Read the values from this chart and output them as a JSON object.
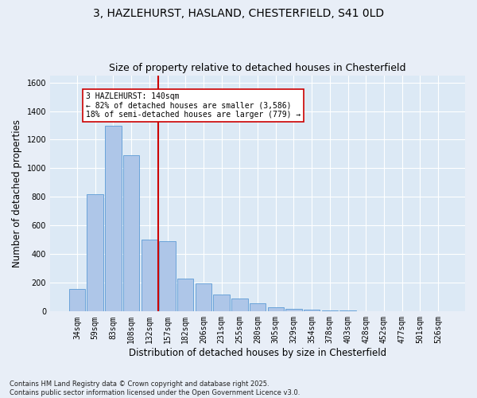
{
  "title1": "3, HAZLEHURST, HASLAND, CHESTERFIELD, S41 0LD",
  "title2": "Size of property relative to detached houses in Chesterfield",
  "xlabel": "Distribution of detached houses by size in Chesterfield",
  "ylabel": "Number of detached properties",
  "categories": [
    "34sqm",
    "59sqm",
    "83sqm",
    "108sqm",
    "132sqm",
    "157sqm",
    "182sqm",
    "206sqm",
    "231sqm",
    "255sqm",
    "280sqm",
    "305sqm",
    "329sqm",
    "354sqm",
    "378sqm",
    "403sqm",
    "428sqm",
    "452sqm",
    "477sqm",
    "501sqm",
    "526sqm"
  ],
  "values": [
    155,
    820,
    1300,
    1090,
    500,
    490,
    230,
    195,
    120,
    90,
    55,
    30,
    18,
    12,
    8,
    5,
    3,
    2,
    2,
    1,
    1
  ],
  "bar_color": "#aec6e8",
  "bar_edge_color": "#5b9bd5",
  "vline_color": "#cc0000",
  "annotation_text": "3 HAZLEHURST: 140sqm\n← 82% of detached houses are smaller (3,586)\n18% of semi-detached houses are larger (779) →",
  "annotation_box_color": "#ffffff",
  "annotation_box_edge": "#cc0000",
  "fig_bg_color": "#e8eef7",
  "plot_bg_color": "#dce9f5",
  "footer": "Contains HM Land Registry data © Crown copyright and database right 2025.\nContains public sector information licensed under the Open Government Licence v3.0.",
  "ylim": [
    0,
    1650
  ],
  "yticks": [
    0,
    200,
    400,
    600,
    800,
    1000,
    1200,
    1400,
    1600
  ],
  "title_fontsize": 10,
  "subtitle_fontsize": 9,
  "tick_fontsize": 7,
  "label_fontsize": 8.5,
  "footer_fontsize": 6
}
